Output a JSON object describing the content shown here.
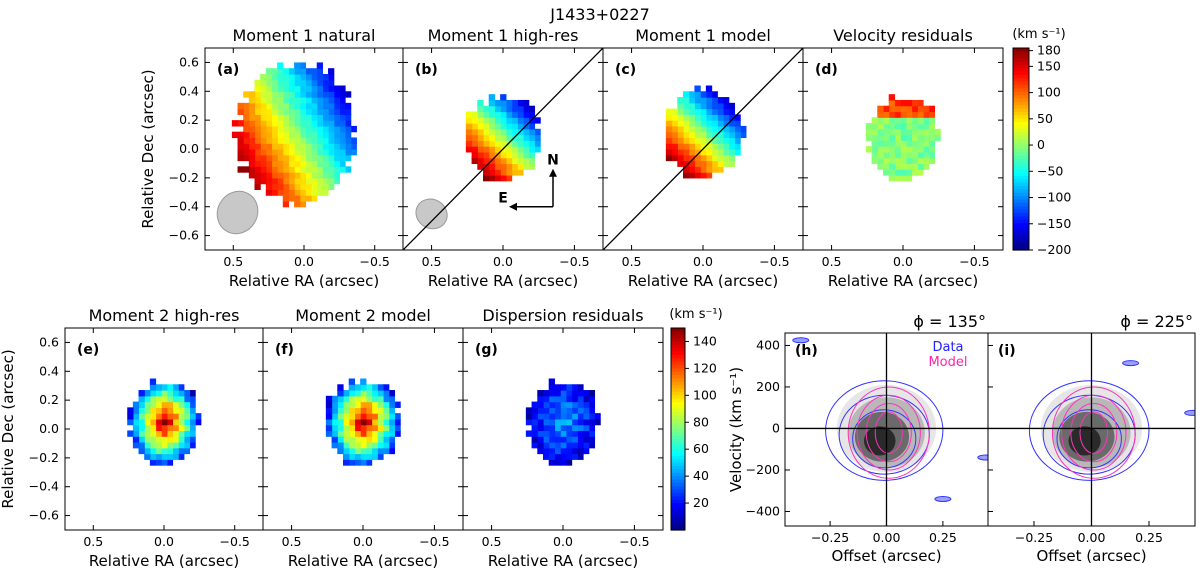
{
  "figure_title": "J1433+0227",
  "chart_data": [
    {
      "id": "a",
      "type": "heatmap",
      "label": "(a)",
      "title": "Moment 1 natural",
      "xlabel": "Relative RA (arcsec)",
      "ylabel": "Relative Dec (arcsec)",
      "xlim": [
        0.7,
        -0.7
      ],
      "ylim": [
        -0.7,
        0.7
      ],
      "xticks": [
        0.5,
        0.0,
        -0.5
      ],
      "xtick_labels": [
        "0.5",
        "0.0",
        "−0.5"
      ],
      "yticks": [
        0.6,
        0.4,
        0.2,
        0.0,
        -0.2,
        -0.4,
        -0.6
      ],
      "ytick_labels": [
        "0.6",
        "0.4",
        "0.2",
        "0.0",
        "−0.2",
        "−0.4",
        "−0.6"
      ],
      "center": [
        0.05,
        0.1
      ],
      "radius": 0.42,
      "value_min": -200,
      "value_max": 180,
      "gradient_angle_deg": 150,
      "beam": {
        "ra": 0.47,
        "dec": -0.44,
        "major": 0.3,
        "minor": 0.2,
        "pa_deg": 30
      }
    },
    {
      "id": "b",
      "type": "heatmap",
      "label": "(b)",
      "title": "Moment 1 high-res",
      "xlabel": "Relative RA (arcsec)",
      "xlim": [
        0.7,
        -0.7
      ],
      "ylim": [
        -0.7,
        0.7
      ],
      "xticks": [
        0.5,
        0.0,
        -0.5
      ],
      "xtick_labels": [
        "0.5",
        "0.0",
        "−0.5"
      ],
      "center": [
        0.0,
        0.08
      ],
      "radius": 0.26,
      "value_min": -200,
      "value_max": 180,
      "gradient_angle_deg": 135,
      "slit_line": true,
      "compass": {
        "north": "N",
        "east": "E"
      },
      "beam": {
        "ra": 0.5,
        "dec": -0.45,
        "major": 0.2,
        "minor": 0.16,
        "pa_deg": 30
      }
    },
    {
      "id": "c",
      "type": "heatmap",
      "label": "(c)",
      "title": "Moment 1 model",
      "xlabel": "Relative RA (arcsec)",
      "xlim": [
        0.7,
        -0.7
      ],
      "ylim": [
        -0.7,
        0.7
      ],
      "xticks": [
        0.5,
        0.0,
        -0.5
      ],
      "xtick_labels": [
        "0.5",
        "0.0",
        "−0.5"
      ],
      "center": [
        0.0,
        0.1
      ],
      "radius": 0.27,
      "value_min": -200,
      "value_max": 180,
      "gradient_angle_deg": 135,
      "slit_line": true
    },
    {
      "id": "d",
      "type": "heatmap",
      "label": "(d)",
      "title": "Velocity residuals",
      "xlabel": "Relative RA (arcsec)",
      "xlim": [
        0.7,
        -0.7
      ],
      "ylim": [
        -0.7,
        0.7
      ],
      "xticks": [
        0.5,
        0.0,
        -0.5
      ],
      "xtick_labels": [
        "0.5",
        "0.0",
        "−0.5"
      ],
      "center": [
        0.0,
        0.08
      ],
      "radius": 0.25,
      "value_min": -200,
      "value_max": 180,
      "gradient_angle_deg": 0
    },
    {
      "id": "e",
      "type": "heatmap",
      "label": "(e)",
      "title": "Moment 2 high-res",
      "xlabel": "Relative RA (arcsec)",
      "ylabel": "Relative Dec (arcsec)",
      "xlim": [
        0.7,
        -0.7
      ],
      "ylim": [
        -0.7,
        0.7
      ],
      "xticks": [
        0.5,
        0.0,
        -0.5
      ],
      "xtick_labels": [
        "0.5",
        "0.0",
        "−0.5"
      ],
      "yticks": [
        0.6,
        0.4,
        0.2,
        0.0,
        -0.2,
        -0.4,
        -0.6
      ],
      "ytick_labels": [
        "0.6",
        "0.4",
        "0.2",
        "0.0",
        "−0.2",
        "−0.4",
        "−0.6"
      ],
      "center": [
        0.0,
        0.05
      ],
      "radius": 0.25,
      "value_min": 0,
      "value_max": 150,
      "peak": 140
    },
    {
      "id": "f",
      "type": "heatmap",
      "label": "(f)",
      "title": "Moment 2 model",
      "xlabel": "Relative RA (arcsec)",
      "xlim": [
        0.7,
        -0.7
      ],
      "ylim": [
        -0.7,
        0.7
      ],
      "xticks": [
        0.5,
        0.0,
        -0.5
      ],
      "xtick_labels": [
        "0.5",
        "0.0",
        "−0.5"
      ],
      "center": [
        0.0,
        0.05
      ],
      "radius": 0.26,
      "value_min": 0,
      "value_max": 150,
      "peak": 140
    },
    {
      "id": "g",
      "type": "heatmap",
      "label": "(g)",
      "title": "Dispersion residuals",
      "xlabel": "Relative RA (arcsec)",
      "xlim": [
        0.7,
        -0.7
      ],
      "ylim": [
        -0.7,
        0.7
      ],
      "xticks": [
        0.5,
        0.0,
        -0.5
      ],
      "xtick_labels": [
        "0.5",
        "0.0",
        "−0.5"
      ],
      "center": [
        0.0,
        0.05
      ],
      "radius": 0.25,
      "value_min": 0,
      "value_max": 150,
      "peak": 35
    },
    {
      "id": "h",
      "type": "contour",
      "label": "(h)",
      "angle_label": "ϕ = 135°",
      "legend": [
        "Data",
        "Model"
      ],
      "xlabel": "Offset (arcsec)",
      "ylabel": "Velocity (km s⁻¹)",
      "xlim": [
        -0.45,
        0.45
      ],
      "ylim": [
        -470,
        460
      ],
      "xticks": [
        -0.25,
        0.0,
        0.25
      ],
      "xtick_labels": [
        "−0.25",
        "0.00",
        "0.25"
      ],
      "yticks": [
        400,
        200,
        0,
        -200,
        -400
      ],
      "ytick_labels": [
        "400",
        "200",
        "0",
        "−200",
        "−400"
      ]
    },
    {
      "id": "i",
      "type": "contour",
      "label": "(i)",
      "angle_label": "ϕ = 225°",
      "xlabel": "Offset (arcsec)",
      "xlim": [
        -0.45,
        0.45
      ],
      "ylim": [
        -470,
        460
      ],
      "xticks": [
        -0.25,
        0.0,
        0.25
      ],
      "xtick_labels": [
        "−0.25",
        "0.00",
        "0.25"
      ]
    }
  ],
  "colorbars": [
    {
      "id": "velocity",
      "unit": "(km s⁻¹)",
      "min": -200,
      "max": 185,
      "ticks": [
        180,
        150,
        100,
        50,
        0,
        -50,
        -100,
        -150,
        -200
      ],
      "tick_labels": [
        "180",
        "150",
        "100",
        "50",
        "0",
        "−50",
        "−100",
        "−150",
        "−200"
      ]
    },
    {
      "id": "dispersion",
      "unit": "(km s⁻¹)",
      "min": 0,
      "max": 150,
      "ticks": [
        140,
        120,
        100,
        80,
        60,
        40,
        20
      ],
      "tick_labels": [
        "140",
        "120",
        "100",
        "80",
        "60",
        "40",
        "20"
      ]
    }
  ],
  "colors": {
    "data_contour": "#3333ff",
    "model_contour": "#ff33bb",
    "beam": "#c8c8c8",
    "legend_data": "#2222ff",
    "legend_model": "#ff22aa"
  }
}
